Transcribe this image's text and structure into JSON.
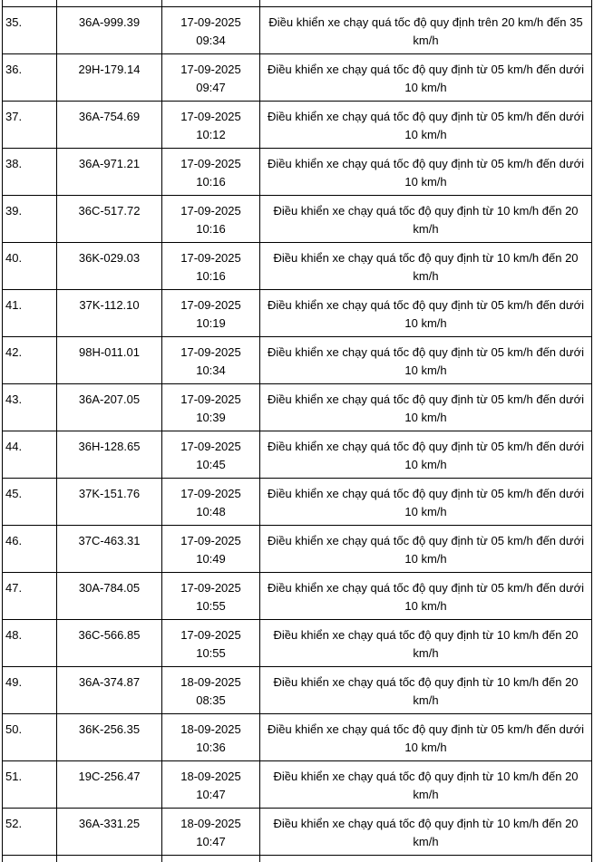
{
  "table": {
    "columns": {
      "no": "row-number",
      "plate": "license-plate",
      "time": "violation-datetime",
      "violation": "violation-description"
    },
    "rows": [
      {
        "no": "35.",
        "plate": "36A-999.39",
        "time": "17-09-2025 09:34",
        "violation": "Điều khiển xe chạy quá tốc độ quy định trên 20 km/h đến 35 km/h"
      },
      {
        "no": "36.",
        "plate": "29H-179.14",
        "time": "17-09-2025 09:47",
        "violation": "Điều khiển xe chạy quá tốc độ quy định từ 05 km/h đến dưới 10 km/h"
      },
      {
        "no": "37.",
        "plate": "36A-754.69",
        "time": "17-09-2025 10:12",
        "violation": "Điều khiển xe chạy quá tốc độ quy định từ 05 km/h đến dưới 10 km/h"
      },
      {
        "no": "38.",
        "plate": "36A-971.21",
        "time": "17-09-2025 10:16",
        "violation": "Điều khiển xe chạy quá tốc độ quy định từ 05 km/h đến dưới 10 km/h"
      },
      {
        "no": "39.",
        "plate": "36C-517.72",
        "time": "17-09-2025 10:16",
        "violation": "Điều khiển xe chạy quá tốc độ quy định từ 10 km/h đến 20 km/h"
      },
      {
        "no": "40.",
        "plate": "36K-029.03",
        "time": "17-09-2025 10:16",
        "violation": "Điều khiển xe chạy quá tốc độ quy định từ 10 km/h đến 20 km/h"
      },
      {
        "no": "41.",
        "plate": "37K-112.10",
        "time": "17-09-2025 10:19",
        "violation": "Điều khiển xe chạy quá tốc độ quy định từ 05 km/h đến dưới 10 km/h"
      },
      {
        "no": "42.",
        "plate": "98H-011.01",
        "time": "17-09-2025 10:34",
        "violation": "Điều khiển xe chạy quá tốc độ quy định từ 05 km/h đến dưới 10 km/h"
      },
      {
        "no": "43.",
        "plate": "36A-207.05",
        "time": "17-09-2025 10:39",
        "violation": "Điều khiển xe chạy quá tốc độ quy định từ 05 km/h đến dưới 10 km/h"
      },
      {
        "no": "44.",
        "plate": "36H-128.65",
        "time": "17-09-2025 10:45",
        "violation": "Điều khiển xe chạy quá tốc độ quy định từ 05 km/h đến dưới 10 km/h"
      },
      {
        "no": "45.",
        "plate": "37K-151.76",
        "time": "17-09-2025 10:48",
        "violation": "Điều khiển xe chạy quá tốc độ quy định từ 05 km/h đến dưới 10 km/h"
      },
      {
        "no": "46.",
        "plate": "37C-463.31",
        "time": "17-09-2025 10:49",
        "violation": "Điều khiển xe chạy quá tốc độ quy định từ 05 km/h đến dưới 10 km/h"
      },
      {
        "no": "47.",
        "plate": "30A-784.05",
        "time": "17-09-2025 10:55",
        "violation": "Điều khiển xe chạy quá tốc độ quy định từ 05 km/h đến dưới 10 km/h"
      },
      {
        "no": "48.",
        "plate": "36C-566.85",
        "time": "17-09-2025 10:55",
        "violation": "Điều khiển xe chạy quá tốc độ quy định từ 10 km/h đến 20 km/h"
      },
      {
        "no": "49.",
        "plate": "36A-374.87",
        "time": "18-09-2025 08:35",
        "violation": "Điều khiển xe chạy quá tốc độ quy định từ 10 km/h đến 20 km/h"
      },
      {
        "no": "50.",
        "plate": "36K-256.35",
        "time": "18-09-2025 10:36",
        "violation": "Điều khiển xe chạy quá tốc độ quy định từ 05 km/h đến dưới 10 km/h"
      },
      {
        "no": "51.",
        "plate": "19C-256.47",
        "time": "18-09-2025 10:47",
        "violation": "Điều khiển xe chạy quá tốc độ quy định từ 10 km/h đến 20 km/h"
      },
      {
        "no": "52.",
        "plate": "36A-331.25",
        "time": "18-09-2025 10:47",
        "violation": "Điều khiển xe chạy quá tốc độ quy định từ 10 km/h đến 20 km/h"
      }
    ]
  },
  "colors": {
    "border": "#000000",
    "text": "#000000",
    "background": "#ffffff"
  }
}
